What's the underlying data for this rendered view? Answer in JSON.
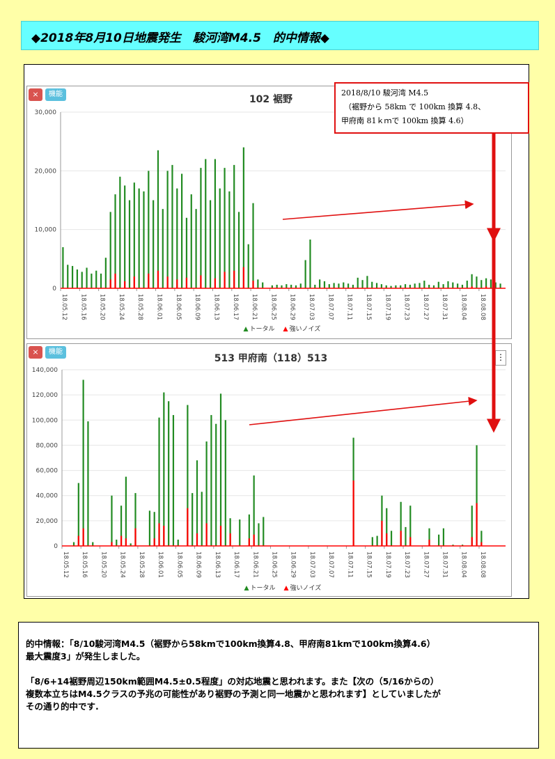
{
  "title": "◆2018年8月10日地震発生　駿河湾M4.5　的中情報◆",
  "buttons": {
    "close": "×",
    "function": "機能"
  },
  "annotation": {
    "line1": "2018/8/10 駿河湾 M4.5",
    "line2": "（裾野から 58km で 100km 換算 4.8、",
    "line3": "甲府南 81ｋｍで 100km 換算 4.6）"
  },
  "colors": {
    "total": "#228b22",
    "noise": "#ff0000",
    "annotation": "#e01010"
  },
  "chart_data": [
    {
      "type": "bar",
      "title": "102 裾野",
      "legend": [
        "トータル",
        "強いノイズ"
      ],
      "y_ticks": [
        "0",
        "10,000",
        "20,000",
        "30,000"
      ],
      "ylim": [
        0,
        30000
      ],
      "x_ticks": [
        "18.05.12",
        "18.05.16",
        "18.05.20",
        "18.05.24",
        "18.05.28",
        "18.06.01",
        "18.06.05",
        "18.06.09",
        "18.06.13",
        "18.06.17",
        "18.06.21",
        "18.06.25",
        "18.06.29",
        "18.07.03",
        "18.07.07",
        "18.07.11",
        "18.07.15",
        "18.07.19",
        "18.07.23",
        "18.07.27",
        "18.07.31",
        "18.08.04",
        "18.08.08"
      ],
      "series": [
        {
          "name": "トータル",
          "points": [
            [
              "05.12",
              7000
            ],
            [
              "05.13",
              4000
            ],
            [
              "05.14",
              3800
            ],
            [
              "05.15",
              3200
            ],
            [
              "05.16",
              2800
            ],
            [
              "05.17",
              3500
            ],
            [
              "05.18",
              2500
            ],
            [
              "05.19",
              3000
            ],
            [
              "05.20",
              2500
            ],
            [
              "05.21",
              5200
            ],
            [
              "05.22",
              13000
            ],
            [
              "05.23",
              16000
            ],
            [
              "05.24",
              19000
            ],
            [
              "05.25",
              17500
            ],
            [
              "05.26",
              15000
            ],
            [
              "05.27",
              18000
            ],
            [
              "05.28",
              17000
            ],
            [
              "05.29",
              16500
            ],
            [
              "05.30",
              20000
            ],
            [
              "05.31",
              15000
            ],
            [
              "06.01",
              23500
            ],
            [
              "06.02",
              13500
            ],
            [
              "06.03",
              20000
            ],
            [
              "06.04",
              21000
            ],
            [
              "06.05",
              17000
            ],
            [
              "06.06",
              19500
            ],
            [
              "06.07",
              12000
            ],
            [
              "06.08",
              16000
            ],
            [
              "06.09",
              13500
            ],
            [
              "06.10",
              20500
            ],
            [
              "06.11",
              22000
            ],
            [
              "06.12",
              15000
            ],
            [
              "06.13",
              22000
            ],
            [
              "06.14",
              17000
            ],
            [
              "06.15",
              20500
            ],
            [
              "06.16",
              16500
            ],
            [
              "06.17",
              21000
            ],
            [
              "06.18",
              13000
            ],
            [
              "06.19",
              24000
            ],
            [
              "06.20",
              7500
            ],
            [
              "06.21",
              14500
            ],
            [
              "06.22",
              1500
            ],
            [
              "06.23",
              1000
            ],
            [
              "06.24",
              0
            ],
            [
              "06.25",
              500
            ],
            [
              "06.26",
              600
            ],
            [
              "06.27",
              500
            ],
            [
              "06.28",
              700
            ],
            [
              "06.29",
              600
            ],
            [
              "06.30",
              500
            ],
            [
              "07.01",
              800
            ],
            [
              "07.02",
              4800
            ],
            [
              "07.03",
              8300
            ],
            [
              "07.04",
              600
            ],
            [
              "07.05",
              1500
            ],
            [
              "07.06",
              1200
            ],
            [
              "07.07",
              700
            ],
            [
              "07.08",
              900
            ],
            [
              "07.09",
              800
            ],
            [
              "07.10",
              1000
            ],
            [
              "07.11",
              800
            ],
            [
              "07.12",
              600
            ],
            [
              "07.13",
              1800
            ],
            [
              "07.14",
              1400
            ],
            [
              "07.15",
              2100
            ],
            [
              "07.16",
              1100
            ],
            [
              "07.17",
              900
            ],
            [
              "07.18",
              700
            ],
            [
              "07.19",
              500
            ],
            [
              "07.20",
              400
            ],
            [
              "07.21",
              500
            ],
            [
              "07.22",
              500
            ],
            [
              "07.23",
              700
            ],
            [
              "07.24",
              600
            ],
            [
              "07.25",
              800
            ],
            [
              "07.26",
              900
            ],
            [
              "07.27",
              1300
            ],
            [
              "07.28",
              600
            ],
            [
              "07.29",
              500
            ],
            [
              "07.30",
              1100
            ],
            [
              "07.31",
              700
            ],
            [
              "08.01",
              1200
            ],
            [
              "08.02",
              1000
            ],
            [
              "08.03",
              800
            ],
            [
              "08.04",
              600
            ],
            [
              "08.05",
              1300
            ],
            [
              "08.06",
              2400
            ],
            [
              "08.07",
              2000
            ],
            [
              "08.08",
              1400
            ],
            [
              "08.09",
              1700
            ],
            [
              "08.10",
              1500
            ],
            [
              "08.11",
              1000
            ],
            [
              "08.12",
              800
            ]
          ]
        },
        {
          "name": "強いノイズ",
          "points": [
            [
              "05.22",
              1500
            ],
            [
              "05.23",
              2500
            ],
            [
              "05.25",
              1200
            ],
            [
              "05.27",
              2000
            ],
            [
              "05.30",
              2500
            ],
            [
              "06.01",
              3000
            ],
            [
              "06.03",
              2000
            ],
            [
              "06.05",
              1500
            ],
            [
              "06.07",
              1800
            ],
            [
              "06.10",
              2200
            ],
            [
              "06.13",
              1700
            ],
            [
              "06.15",
              2800
            ],
            [
              "06.17",
              3000
            ],
            [
              "06.19",
              3600
            ],
            [
              "06.21",
              1300
            ],
            [
              "08.06",
              300
            ],
            [
              "08.09",
              300
            ]
          ]
        }
      ]
    },
    {
      "type": "bar",
      "title": "513 甲府南（118）513",
      "legend": [
        "トータル",
        "強いノイズ"
      ],
      "y_ticks": [
        "0",
        "20,000",
        "40,000",
        "60,000",
        "80,000",
        "100,000",
        "120,000",
        "140,000"
      ],
      "ylim": [
        0,
        140000
      ],
      "x_ticks": [
        "18.05.12",
        "18.05.16",
        "18.05.20",
        "18.05.24",
        "18.05.28",
        "18.06.01",
        "18.06.05",
        "18.06.09",
        "18.06.13",
        "18.06.17",
        "18.06.21",
        "18.06.25",
        "18.06.29",
        "18.07.03",
        "18.07.07",
        "18.07.11",
        "18.07.15",
        "18.07.19",
        "18.07.23",
        "18.07.27",
        "18.07.31",
        "18.08.04",
        "18.08.08"
      ],
      "series": [
        {
          "name": "トータル",
          "points": [
            [
              "05.14",
              3000
            ],
            [
              "05.15",
              50000
            ],
            [
              "05.16",
              132000
            ],
            [
              "05.17",
              99000
            ],
            [
              "05.18",
              3000
            ],
            [
              "05.22",
              40000
            ],
            [
              "05.23",
              5000
            ],
            [
              "05.24",
              32000
            ],
            [
              "05.25",
              55000
            ],
            [
              "05.26",
              2000
            ],
            [
              "05.27",
              42000
            ],
            [
              "05.30",
              28000
            ],
            [
              "05.31",
              27000
            ],
            [
              "06.01",
              102000
            ],
            [
              "06.02",
              122000
            ],
            [
              "06.03",
              115000
            ],
            [
              "06.04",
              104000
            ],
            [
              "06.05",
              5000
            ],
            [
              "06.07",
              112000
            ],
            [
              "06.08",
              42000
            ],
            [
              "06.09",
              68000
            ],
            [
              "06.10",
              43000
            ],
            [
              "06.11",
              83000
            ],
            [
              "06.12",
              104000
            ],
            [
              "06.13",
              97000
            ],
            [
              "06.14",
              121000
            ],
            [
              "06.15",
              100000
            ],
            [
              "06.16",
              22000
            ],
            [
              "06.18",
              21000
            ],
            [
              "06.20",
              25000
            ],
            [
              "06.21",
              56000
            ],
            [
              "06.22",
              18000
            ],
            [
              "06.23",
              23000
            ],
            [
              "07.12",
              86000
            ],
            [
              "07.16",
              7000
            ],
            [
              "07.17",
              8000
            ],
            [
              "07.18",
              40000
            ],
            [
              "07.19",
              30000
            ],
            [
              "07.20",
              12000
            ],
            [
              "07.22",
              35000
            ],
            [
              "07.23",
              15000
            ],
            [
              "07.24",
              32000
            ],
            [
              "07.28",
              14000
            ],
            [
              "07.30",
              9000
            ],
            [
              "07.31",
              14000
            ],
            [
              "08.02",
              1000
            ],
            [
              "08.04",
              1000
            ],
            [
              "08.06",
              32000
            ],
            [
              "08.07",
              80000
            ],
            [
              "08.08",
              12000
            ]
          ]
        },
        {
          "name": "強いノイズ",
          "points": [
            [
              "05.15",
              8000
            ],
            [
              "05.16",
              14000
            ],
            [
              "05.22",
              3000
            ],
            [
              "05.24",
              8000
            ],
            [
              "05.25",
              6000
            ],
            [
              "05.27",
              14000
            ],
            [
              "05.31",
              6000
            ],
            [
              "06.01",
              18000
            ],
            [
              "06.02",
              16000
            ],
            [
              "06.07",
              30000
            ],
            [
              "06.09",
              10000
            ],
            [
              "06.11",
              18000
            ],
            [
              "06.14",
              16000
            ],
            [
              "06.16",
              10000
            ],
            [
              "06.20",
              6000
            ],
            [
              "06.21",
              9000
            ],
            [
              "07.12",
              52000
            ],
            [
              "07.18",
              20000
            ],
            [
              "07.19",
              10000
            ],
            [
              "07.22",
              12000
            ],
            [
              "07.24",
              7000
            ],
            [
              "07.28",
              5000
            ],
            [
              "08.06",
              7000
            ],
            [
              "08.07",
              34000
            ],
            [
              "08.08",
              3000
            ]
          ]
        }
      ]
    }
  ],
  "bottom_text": {
    "line1": "的中情報：「8/10駿河湾M4.5（裾野から58kmで100km換算4.8、甲府南81kmで100km換算4.6）",
    "line2": "最大震度3」が発生しました。",
    "line3": "「8/6+14裾野周辺150km範囲M4.5±0.5程度」の対応地震と思われます。また【次の（5/16からの）",
    "line4": "複数本立ちはM4.5クラスの予兆の可能性があり裾野の予測と同一地震かと思われます】としていましたが",
    "line5": "その通り的中です."
  }
}
